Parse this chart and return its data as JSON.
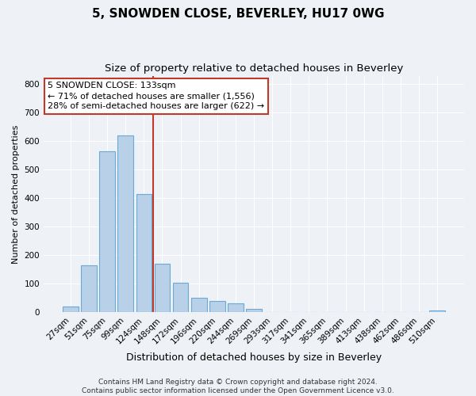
{
  "title": "5, SNOWDEN CLOSE, BEVERLEY, HU17 0WG",
  "subtitle": "Size of property relative to detached houses in Beverley",
  "xlabel": "Distribution of detached houses by size in Beverley",
  "ylabel": "Number of detached properties",
  "bar_labels": [
    "27sqm",
    "51sqm",
    "75sqm",
    "99sqm",
    "124sqm",
    "148sqm",
    "172sqm",
    "196sqm",
    "220sqm",
    "244sqm",
    "269sqm",
    "293sqm",
    "317sqm",
    "341sqm",
    "365sqm",
    "389sqm",
    "413sqm",
    "438sqm",
    "462sqm",
    "486sqm",
    "510sqm"
  ],
  "bar_heights": [
    20,
    165,
    565,
    620,
    415,
    170,
    103,
    50,
    40,
    33,
    12,
    0,
    0,
    0,
    0,
    0,
    0,
    0,
    0,
    0,
    7
  ],
  "bar_color": "#b8d0e8",
  "bar_edge_color": "#6aaad4",
  "marker_bar_idx": 4,
  "marker_color": "#c0392b",
  "annotation_line1": "5 SNOWDEN CLOSE: 133sqm",
  "annotation_line2": "← 71% of detached houses are smaller (1,556)",
  "annotation_line3": "28% of semi-detached houses are larger (622) →",
  "annotation_box_color": "#ffffff",
  "annotation_box_edge": "#c0392b",
  "ylim": [
    0,
    830
  ],
  "yticks": [
    0,
    100,
    200,
    300,
    400,
    500,
    600,
    700,
    800
  ],
  "bg_color": "#eef2f7",
  "footer_line1": "Contains HM Land Registry data © Crown copyright and database right 2024.",
  "footer_line2": "Contains public sector information licensed under the Open Government Licence v3.0.",
  "title_fontsize": 11,
  "subtitle_fontsize": 9.5,
  "xlabel_fontsize": 9,
  "ylabel_fontsize": 8,
  "tick_fontsize": 7.5,
  "footer_fontsize": 6.5,
  "annot_fontsize": 8
}
